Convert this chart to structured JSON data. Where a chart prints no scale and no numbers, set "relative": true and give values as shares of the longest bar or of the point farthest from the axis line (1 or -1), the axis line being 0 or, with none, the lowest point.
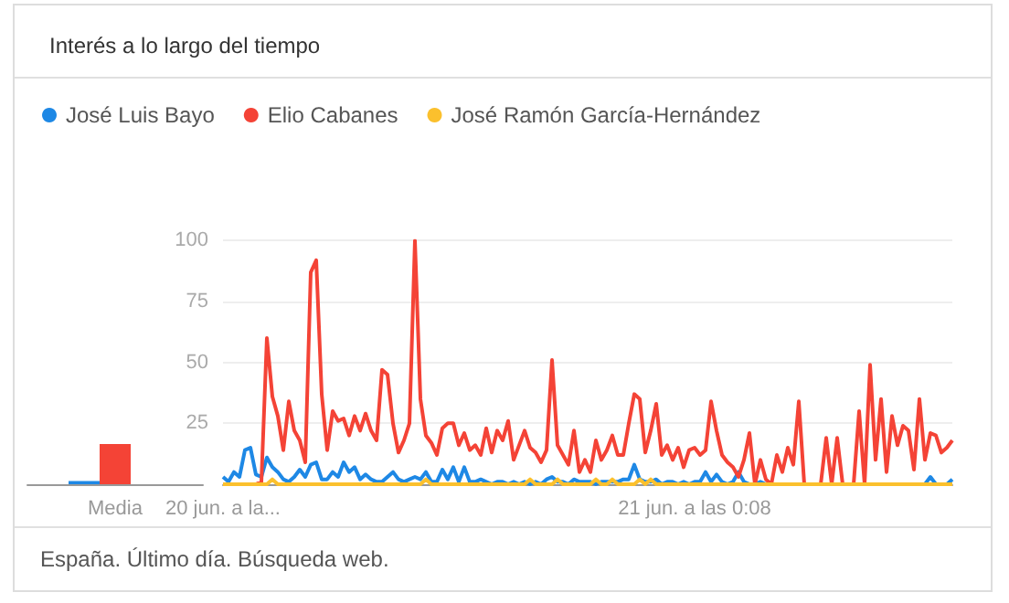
{
  "chart_data": [
    {
      "type": "bar",
      "relative": true,
      "categories": [
        "Media"
      ],
      "series": [
        {
          "color": "#1e88e5",
          "values": [
            0.08
          ]
        },
        {
          "color": "#f44336",
          "values": [
            1
          ]
        },
        {
          "color": "#fbc02d",
          "values": [
            0
          ]
        }
      ]
    },
    {
      "type": "line",
      "title": "Interés a lo largo del tiempo",
      "annotations": [
        "España. Último día. Búsqueda web."
      ],
      "legend": "top left",
      "grid": "y",
      "marker": "none",
      "line_style": "solid",
      "ylim": [
        0,
        100
      ],
      "yticks": [
        25,
        50,
        75,
        100
      ],
      "categories": [
        "20 jun. a la...",
        null,
        null,
        null,
        null,
        null,
        null,
        null,
        null,
        null,
        null,
        null,
        null,
        null,
        null,
        null,
        null,
        null,
        null,
        null,
        null,
        null,
        null,
        null,
        null,
        null,
        null,
        null,
        null,
        null,
        null,
        null,
        null,
        null,
        null,
        null,
        null,
        null,
        null,
        null,
        null,
        null,
        null,
        null,
        null,
        null,
        null,
        null,
        null,
        null,
        null,
        null,
        null,
        null,
        null,
        null,
        null,
        null,
        null,
        null,
        null,
        null,
        null,
        null,
        null,
        null,
        null,
        null,
        null,
        null,
        null,
        null,
        null,
        null,
        null,
        null,
        null,
        null,
        null,
        null,
        null,
        null,
        null,
        null,
        null,
        null,
        "21 jun. a las 0:08",
        null,
        null,
        null,
        null,
        null,
        null,
        null,
        null,
        null,
        null,
        null,
        null,
        null,
        null,
        null,
        null,
        null,
        null,
        null,
        null,
        null,
        null,
        null,
        null,
        null,
        null,
        null,
        null,
        null,
        null,
        null,
        null,
        null,
        null,
        null,
        null,
        null,
        null,
        null,
        null,
        null,
        null,
        null,
        null,
        null,
        null,
        null
      ],
      "series": [
        {
          "name": "José Luis Bayo",
          "color": "#1e88e5",
          "values": [
            3,
            1,
            5,
            3,
            14,
            15,
            4,
            3,
            11,
            7,
            5,
            2,
            1,
            3,
            6,
            3,
            8,
            9,
            2,
            2,
            5,
            3,
            9,
            5,
            7,
            2,
            4,
            2,
            1,
            1,
            3,
            5,
            2,
            1,
            2,
            3,
            2,
            5,
            1,
            1,
            6,
            2,
            7,
            1,
            7,
            1,
            1,
            2,
            1,
            0,
            1,
            1,
            0,
            1,
            0,
            1,
            0,
            1,
            0,
            2,
            3,
            1,
            1,
            0,
            2,
            1,
            1,
            1,
            0,
            1,
            1,
            1,
            1,
            2,
            2,
            8,
            2,
            1,
            1,
            2,
            0,
            1,
            1,
            0,
            1,
            0,
            1,
            1,
            5,
            1,
            4,
            1,
            0,
            1,
            5,
            1,
            0,
            0,
            1,
            0,
            0,
            0,
            0,
            0,
            0,
            0,
            0,
            0,
            0,
            0,
            0,
            0,
            0,
            0,
            0,
            0,
            0,
            0,
            0,
            0,
            0,
            0,
            0,
            0,
            0,
            0,
            0,
            0,
            0,
            3,
            0,
            0,
            0,
            2
          ]
        },
        {
          "name": "Elio Cabanes",
          "color": "#f44336",
          "values": [
            null,
            null,
            null,
            null,
            0,
            0,
            0,
            1,
            60,
            36,
            28,
            14,
            34,
            22,
            18,
            9,
            87,
            92,
            37,
            14,
            30,
            26,
            27,
            20,
            28,
            22,
            29,
            22,
            18,
            47,
            45,
            25,
            13,
            18,
            25,
            100,
            35,
            20,
            17,
            12,
            23,
            25,
            25,
            16,
            21,
            14,
            16,
            12,
            23,
            13,
            22,
            18,
            26,
            10,
            16,
            22,
            15,
            13,
            9,
            14,
            51,
            16,
            12,
            8,
            22,
            5,
            10,
            5,
            18,
            10,
            14,
            20,
            12,
            12,
            25,
            37,
            35,
            13,
            22,
            33,
            12,
            16,
            10,
            15,
            7,
            14,
            15,
            12,
            14,
            34,
            22,
            12,
            9,
            7,
            3,
            10,
            21,
            0,
            10,
            2,
            0,
            12,
            5,
            15,
            8,
            34,
            0,
            0,
            0,
            0,
            19,
            0,
            19,
            0,
            0,
            0,
            30,
            0,
            49,
            10,
            35,
            5,
            28,
            16,
            24,
            22,
            6,
            35,
            10,
            21,
            20,
            13,
            15,
            18
          ]
        },
        {
          "name": "José Ramón García-Hernández",
          "color": "#fbc02d",
          "values": [
            0,
            0,
            0,
            0,
            0,
            0,
            0,
            0,
            0,
            2,
            0,
            0,
            0,
            0,
            0,
            0,
            0,
            0,
            0,
            0,
            0,
            0,
            0,
            0,
            0,
            0,
            0,
            0,
            0,
            0,
            0,
            0,
            0,
            0,
            0,
            0,
            0,
            2,
            0,
            0,
            0,
            0,
            0,
            0,
            0,
            0,
            0,
            0,
            0,
            0,
            0,
            0,
            0,
            0,
            0,
            0,
            2,
            0,
            0,
            0,
            0,
            2,
            0,
            0,
            0,
            0,
            0,
            0,
            2,
            0,
            0,
            2,
            0,
            0,
            0,
            0,
            2,
            0,
            2,
            0,
            0,
            0,
            0,
            0,
            0,
            0,
            0,
            0,
            0,
            0,
            0,
            0,
            0,
            0,
            0,
            0,
            0,
            0,
            0,
            0,
            0,
            0,
            0,
            0,
            0,
            0,
            0,
            0,
            0,
            0,
            0,
            0,
            0,
            0,
            0,
            0,
            0,
            0,
            0,
            0,
            0,
            0,
            0,
            0,
            0,
            0,
            0,
            0,
            0,
            0,
            0,
            0,
            0,
            0
          ]
        }
      ]
    }
  ]
}
